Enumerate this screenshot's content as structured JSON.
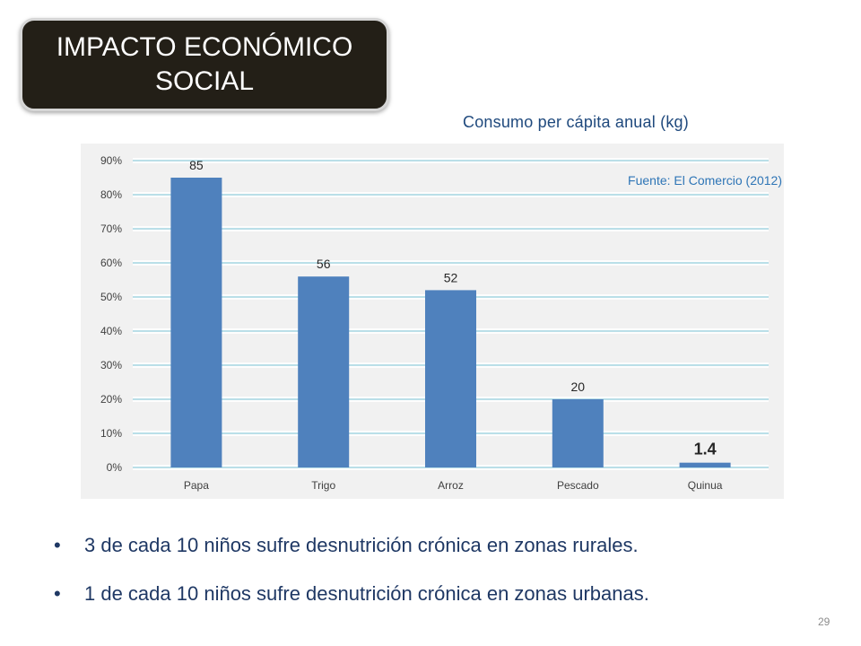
{
  "slide": {
    "title_line1": "IMPACTO ECONÓMICO",
    "title_line2": "SOCIAL",
    "page_number": "29"
  },
  "bullets": [
    {
      "marker": "•",
      "text": "3 de cada 10 niños sufre desnutrición crónica en zonas rurales."
    },
    {
      "marker": "•",
      "text": "1 de cada 10 niños sufre desnutrición crónica en zonas urbanas."
    }
  ],
  "colors": {
    "title_bg": "#231f17",
    "bar": "#4f81bd",
    "chart_title": "#1f497d",
    "source_text": "#2e75b6",
    "gridline": "#4bacc6",
    "panel_bg": "#f1f1f1"
  },
  "chart_data": {
    "type": "bar",
    "title": "Consumo per cápita anual (kg)",
    "annotation": "Fuente: El Comercio (2012)",
    "categories": [
      "Papa",
      "Trigo",
      "Arroz",
      "Pescado",
      "Quinua"
    ],
    "values": [
      85,
      56,
      52,
      20,
      1.4
    ],
    "data_labels": [
      "85",
      "56",
      "52",
      "20",
      "1.4"
    ],
    "y_tick_labels": [
      "0%",
      "10%",
      "20%",
      "30%",
      "40%",
      "50%",
      "60%",
      "70%",
      "80%",
      "90%"
    ],
    "ylim": [
      0,
      90
    ],
    "xlabel": "",
    "ylabel": "",
    "grid": true,
    "legend": "none"
  }
}
